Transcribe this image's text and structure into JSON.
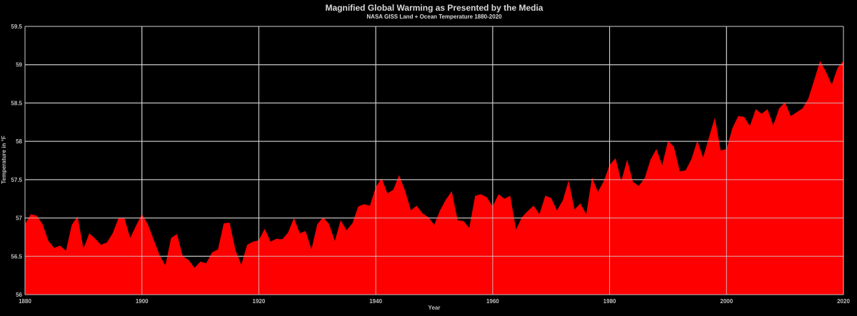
{
  "chart_data": {
    "type": "area",
    "title": "Magnified Global Warming as Presented by the Media",
    "subtitle": "NASA GISS Land + Ocean Temperature 1880-2020",
    "xlabel": "Year",
    "ylabel": "Temperature in °F",
    "xlim": [
      1880,
      2020
    ],
    "ylim": [
      56,
      59.5
    ],
    "xticks": [
      1880,
      1900,
      1920,
      1940,
      1960,
      1980,
      2000,
      2020
    ],
    "yticks": [
      56,
      56.5,
      57,
      57.5,
      58,
      58.5,
      59,
      59.5
    ],
    "grid": true,
    "colors": {
      "fill": "#ff0000",
      "background": "#000000",
      "grid": "#d0d0d0",
      "text": "#d9d9d9"
    },
    "series": [
      {
        "x": [
          1880,
          1881,
          1882,
          1883,
          1884,
          1885,
          1886,
          1887,
          1888,
          1889,
          1890,
          1891,
          1892,
          1893,
          1894,
          1895,
          1896,
          1897,
          1898,
          1899,
          1900,
          1901,
          1902,
          1903,
          1904,
          1905,
          1906,
          1907,
          1908,
          1909,
          1910,
          1911,
          1912,
          1913,
          1914,
          1915,
          1916,
          1917,
          1918,
          1919,
          1920,
          1921,
          1922,
          1923,
          1924,
          1925,
          1926,
          1927,
          1928,
          1929,
          1930,
          1931,
          1932,
          1933,
          1934,
          1935,
          1936,
          1937,
          1938,
          1939,
          1940,
          1941,
          1942,
          1943,
          1944,
          1945,
          1946,
          1947,
          1948,
          1949,
          1950,
          1951,
          1952,
          1953,
          1954,
          1955,
          1956,
          1957,
          1958,
          1959,
          1960,
          1961,
          1962,
          1963,
          1964,
          1965,
          1966,
          1967,
          1968,
          1969,
          1970,
          1971,
          1972,
          1973,
          1974,
          1975,
          1976,
          1977,
          1978,
          1979,
          1980,
          1981,
          1982,
          1983,
          1984,
          1985,
          1986,
          1987,
          1988,
          1989,
          1990,
          1991,
          1992,
          1993,
          1994,
          1995,
          1996,
          1997,
          1998,
          1999,
          2000,
          2001,
          2002,
          2003,
          2004,
          2005,
          2006,
          2007,
          2008,
          2009,
          2010,
          2011,
          2012,
          2013,
          2014,
          2015,
          2016,
          2017,
          2018,
          2019,
          2020
        ],
        "values": [
          56.92,
          57.05,
          57.03,
          56.92,
          56.7,
          56.61,
          56.64,
          56.57,
          56.91,
          57.02,
          56.6,
          56.8,
          56.73,
          56.65,
          56.68,
          56.8,
          57.0,
          57.0,
          56.74,
          56.9,
          57.05,
          56.92,
          56.72,
          56.52,
          56.38,
          56.74,
          56.79,
          56.5,
          56.45,
          56.35,
          56.43,
          56.41,
          56.55,
          56.59,
          56.93,
          56.94,
          56.58,
          56.39,
          56.65,
          56.69,
          56.71,
          56.86,
          56.69,
          56.73,
          56.72,
          56.81,
          57.0,
          56.8,
          56.83,
          56.59,
          56.92,
          57.01,
          56.92,
          56.7,
          56.97,
          56.84,
          56.93,
          57.15,
          57.18,
          57.16,
          57.4,
          57.52,
          57.32,
          57.37,
          57.56,
          57.36,
          57.1,
          57.16,
          57.06,
          57.01,
          56.91,
          57.1,
          57.24,
          57.35,
          56.97,
          56.96,
          56.87,
          57.29,
          57.31,
          57.27,
          57.15,
          57.31,
          57.25,
          57.29,
          56.85,
          57.01,
          57.09,
          57.16,
          57.05,
          57.29,
          57.26,
          57.1,
          57.23,
          57.49,
          57.11,
          57.19,
          57.05,
          57.53,
          57.34,
          57.48,
          57.69,
          57.78,
          57.48,
          57.76,
          57.47,
          57.42,
          57.52,
          57.76,
          57.9,
          57.69,
          58.01,
          57.93,
          57.61,
          57.62,
          57.77,
          58.01,
          57.79,
          58.05,
          58.31,
          57.88,
          57.9,
          58.17,
          58.33,
          58.32,
          58.2,
          58.42,
          58.36,
          58.42,
          58.21,
          58.43,
          58.51,
          58.33,
          58.38,
          58.43,
          58.56,
          58.8,
          59.05,
          58.91,
          58.74,
          58.96,
          59.05
        ]
      }
    ]
  }
}
